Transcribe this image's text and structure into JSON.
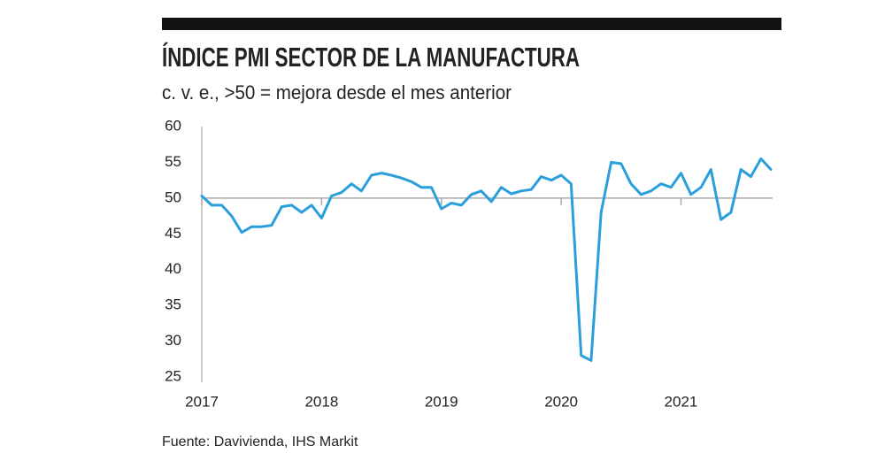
{
  "chart_data": {
    "type": "line",
    "title": "ÍNDICE PMI SECTOR DE LA MANUFACTURA",
    "subtitle": "c. v. e., >50 = mejora desde el mes anterior",
    "source": "Fuente: Davivienda, IHS Markit",
    "x": [
      2017,
      2017.083,
      2017.167,
      2017.25,
      2017.333,
      2017.417,
      2017.5,
      2017.583,
      2017.667,
      2017.75,
      2017.833,
      2017.917,
      2018,
      2018.083,
      2018.167,
      2018.25,
      2018.333,
      2018.417,
      2018.5,
      2018.583,
      2018.667,
      2018.75,
      2018.833,
      2018.917,
      2019,
      2019.083,
      2019.167,
      2019.25,
      2019.333,
      2019.417,
      2019.5,
      2019.583,
      2019.667,
      2019.75,
      2019.833,
      2019.917,
      2020,
      2020.083,
      2020.167,
      2020.25,
      2020.333,
      2020.417,
      2020.5,
      2020.583,
      2020.667,
      2020.75,
      2020.833,
      2020.917,
      2021,
      2021.083,
      2021.167,
      2021.25,
      2021.333,
      2021.417,
      2021.5,
      2021.583,
      2021.667,
      2021.75
    ],
    "series": [
      {
        "name": "PMI",
        "color": "#2a9fdc",
        "values": [
          50.3,
          49,
          49,
          47.5,
          45.2,
          46,
          46,
          46.2,
          48.8,
          49,
          48,
          49,
          47.2,
          50.3,
          50.8,
          52,
          51,
          53.2,
          53.5,
          53.2,
          52.8,
          52.3,
          51.5,
          51.5,
          48.5,
          49.3,
          49,
          50.5,
          51,
          49.5,
          51.5,
          50.6,
          51,
          51.2,
          53,
          52.5,
          53.2,
          52,
          28,
          27.3,
          48,
          55,
          54.8,
          52,
          50.5,
          51,
          52,
          51.5,
          53.5,
          50.5,
          51.5,
          54,
          47,
          48,
          54,
          53,
          55.5,
          54
        ]
      }
    ],
    "xlim": [
      2017,
      2021.75
    ],
    "xticks": [
      2017,
      2018,
      2019,
      2020,
      2021
    ],
    "ylim": [
      25,
      60
    ],
    "yticks": [
      25,
      30,
      35,
      40,
      45,
      50,
      55,
      60
    ],
    "reference_line": 50
  }
}
